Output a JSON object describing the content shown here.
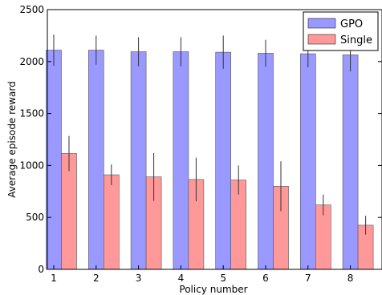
{
  "chart_data": {
    "type": "bar",
    "xlabel": "Policy number",
    "ylabel": "Average episode reward",
    "ylim": [
      0,
      2500
    ],
    "yticks": [
      0,
      500,
      1000,
      1500,
      2000,
      2500
    ],
    "categories": [
      "1",
      "2",
      "3",
      "4",
      "5",
      "6",
      "7",
      "8"
    ],
    "grid": false,
    "legend_position": "top-right",
    "series": [
      {
        "name": "GPO",
        "color": "#9999ff",
        "values": [
          2110,
          2110,
          2095,
          2095,
          2090,
          2080,
          2075,
          2065
        ],
        "errors": [
          150,
          140,
          140,
          140,
          160,
          130,
          130,
          160
        ]
      },
      {
        "name": "Single",
        "color": "#ff9999",
        "values": [
          1115,
          910,
          890,
          865,
          860,
          800,
          620,
          425
        ],
        "errors": [
          170,
          100,
          230,
          210,
          140,
          240,
          100,
          90
        ]
      }
    ]
  }
}
